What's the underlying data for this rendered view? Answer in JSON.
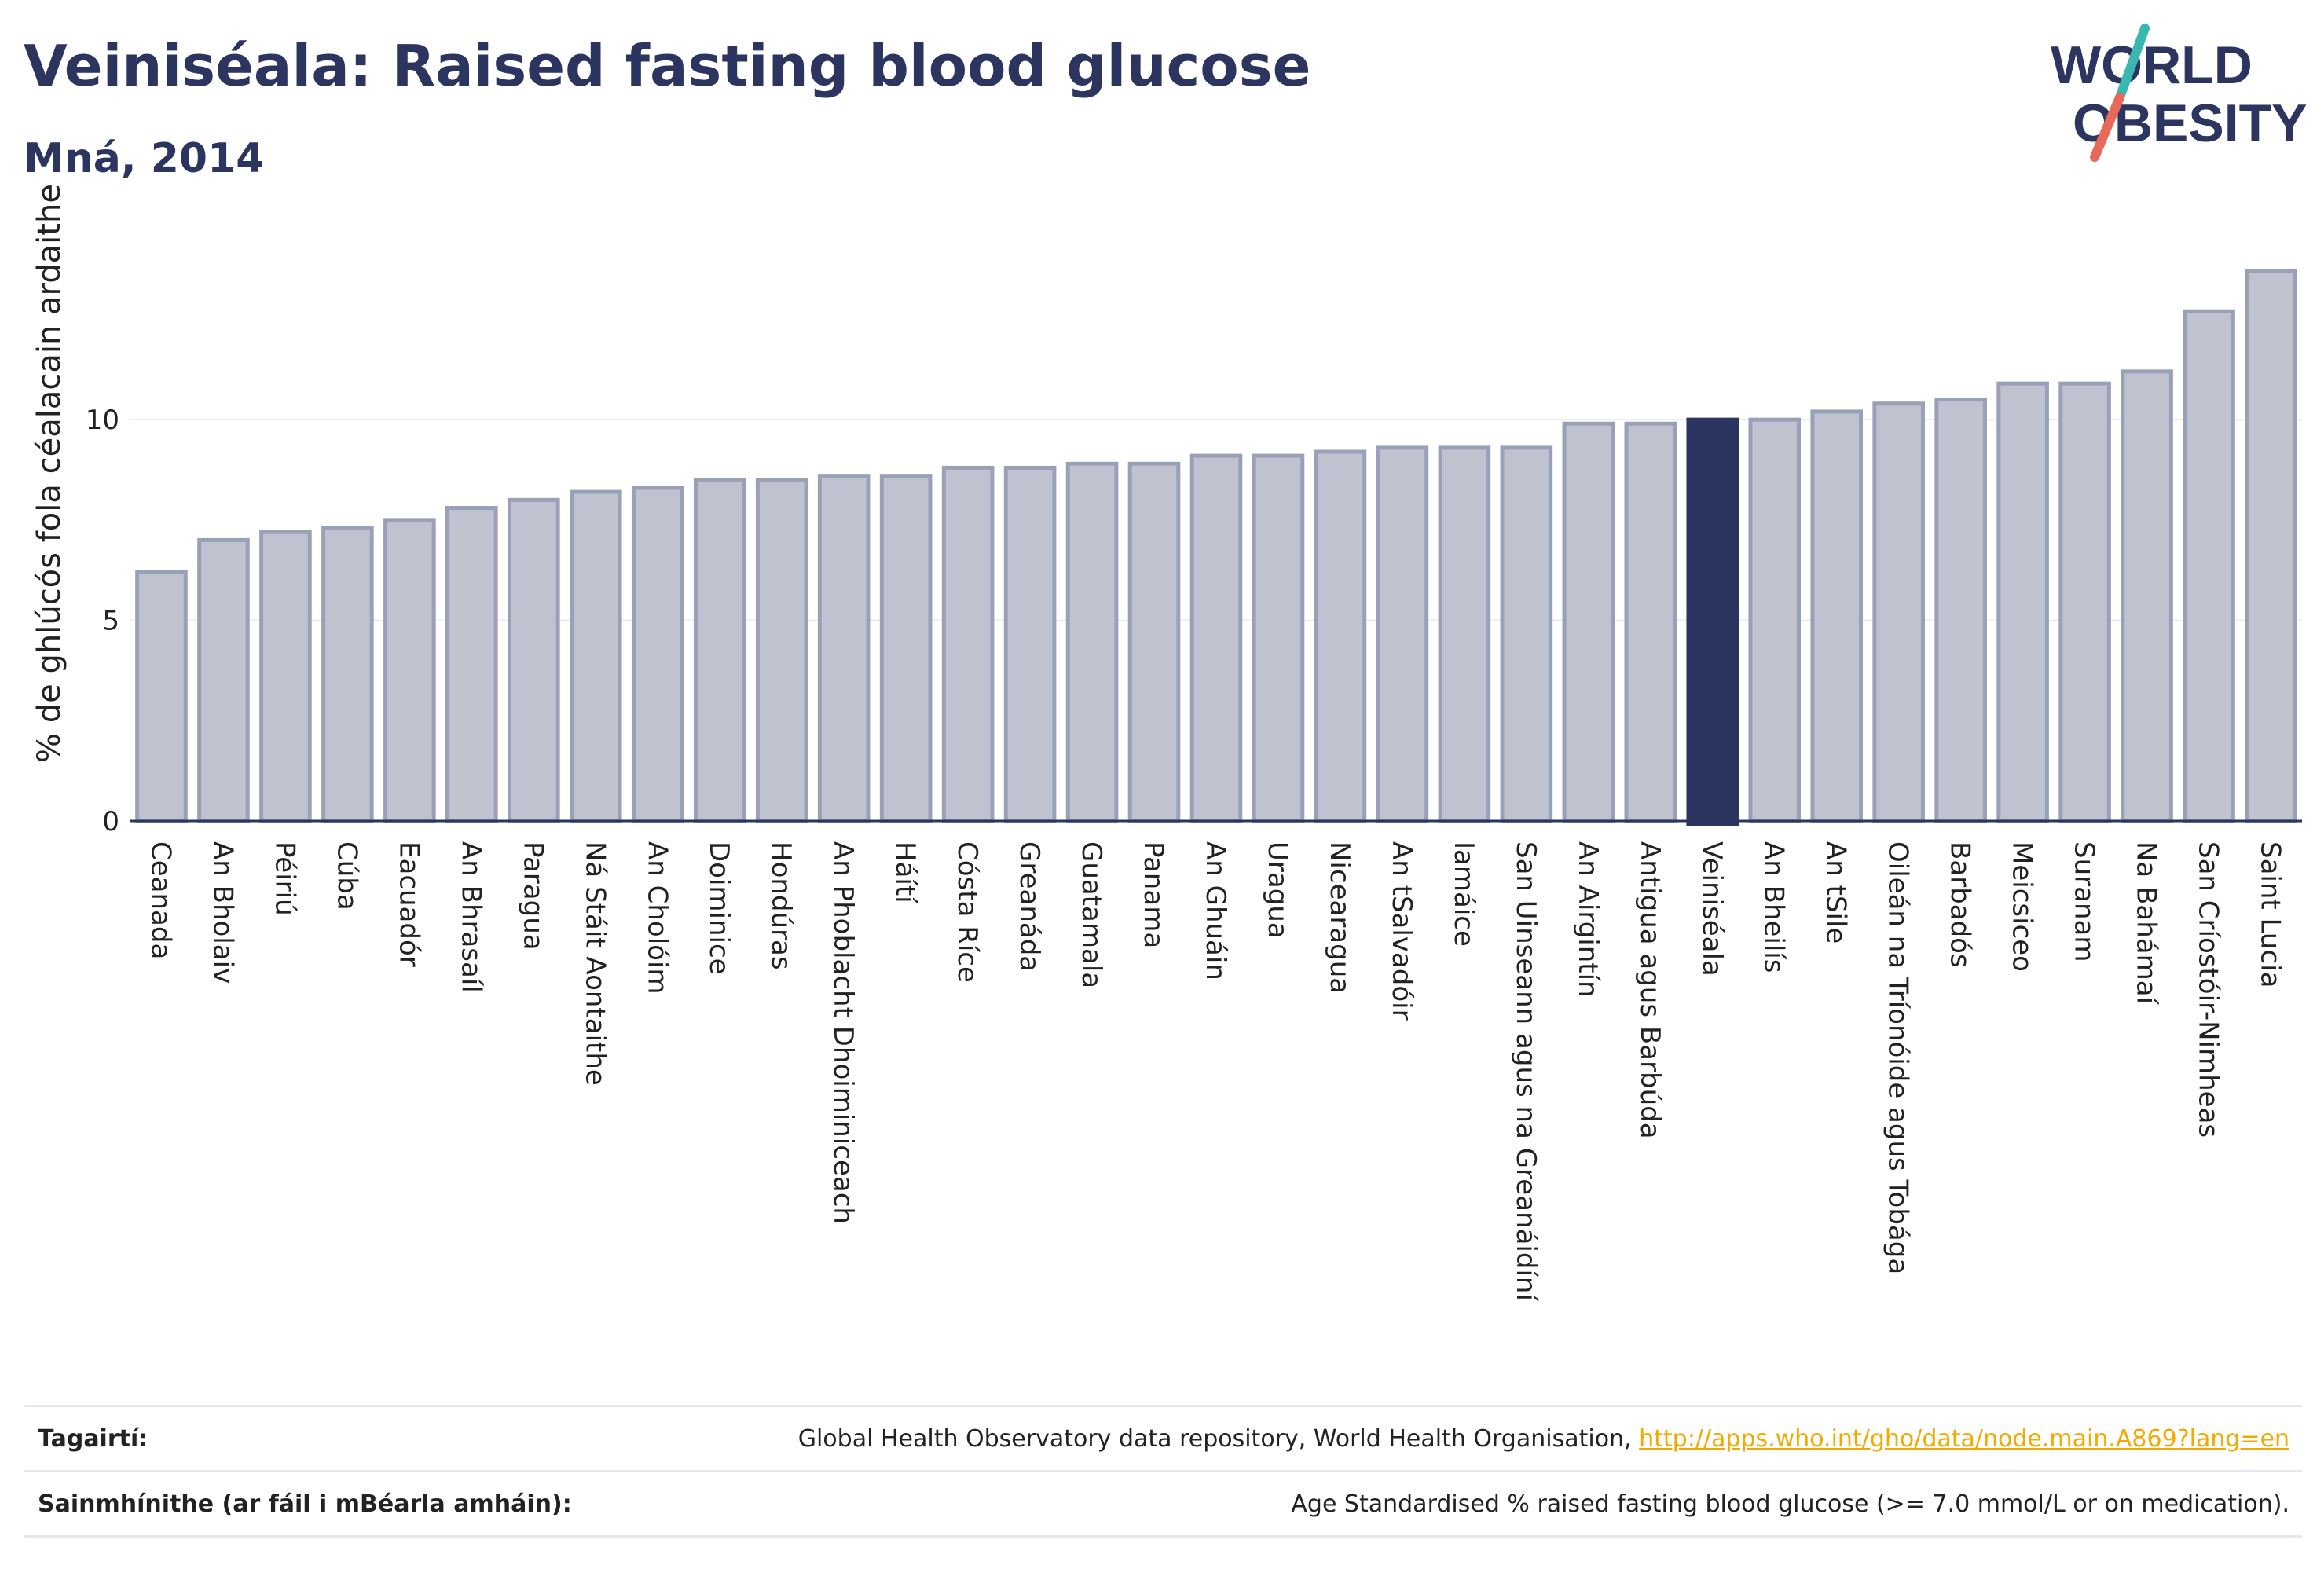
{
  "header": {
    "title": "Veiniséala: Raised fasting blood glucose",
    "subtitle": "Mná, 2014"
  },
  "logo": {
    "line1": "WORLD",
    "line2": "OBESITY"
  },
  "colors": {
    "title": "#2b3560",
    "bar_default": "#bfc3d0",
    "bar_border": "#9aa0b8",
    "bar_highlight": "#2b3560",
    "axis": "#2b3560",
    "link": "#f2a900",
    "logo_teal": "#3ab8b0",
    "logo_red": "#e8685a"
  },
  "chart_data": {
    "type": "bar",
    "ylabel": "% de ghlúcós fola céalacain ardaithe",
    "xlabel": "",
    "ylim": [
      0,
      14
    ],
    "yticks": [
      0,
      5,
      10
    ],
    "grid": true,
    "highlight": "Veiniséala",
    "categories": [
      "Ceanada",
      "An Bholaiv",
      "Péiriú",
      "Cúba",
      "Eacuadór",
      "An Bhrasaíl",
      "Paragua",
      "Ná Stáit Aontaithe",
      "An Cholóim",
      "Doiminice",
      "Hondúras",
      "An Phoblacht Dhoiminiceach",
      "Háítí",
      "Cósta Ríce",
      "Greanáda",
      "Guatamala",
      "Panama",
      "An Ghuáin",
      "Uragua",
      "Nicearagua",
      "An tSalvadóir",
      "Iamáice",
      "San Uinseann agus na Greanáidíní",
      "An Airgintín",
      "Antigua agus Barbúda",
      "Veiniséala",
      "An Bheilís",
      "An tSile",
      "Oileán na Tríonóide agus Tobága",
      "Barbadós",
      "Meicsiceo",
      "Suranam",
      "Na Bahámaí",
      "San Críostóir-Nimheas",
      "Saint Lucia"
    ],
    "values": [
      6.2,
      7.0,
      7.2,
      7.3,
      7.5,
      7.8,
      8.0,
      8.2,
      8.3,
      8.5,
      8.5,
      8.6,
      8.6,
      8.8,
      8.8,
      8.9,
      8.9,
      9.1,
      9.1,
      9.2,
      9.3,
      9.3,
      9.3,
      9.9,
      9.9,
      10.0,
      10.0,
      10.2,
      10.4,
      10.5,
      10.9,
      10.9,
      11.2,
      12.7,
      13.7
    ]
  },
  "footer": {
    "references_label": "Tagairtí:",
    "references_text": "Global Health Observatory data repository, World Health Organisation, ",
    "references_link": "http://apps.who.int/gho/data/node.main.A869?lang=en",
    "definitions_label": "Sainmhínithe (ar fáil i mBéarla amháin):",
    "definitions_text": "Age Standardised % raised fasting blood glucose (>= 7.0 mmol/L or on medication)."
  }
}
